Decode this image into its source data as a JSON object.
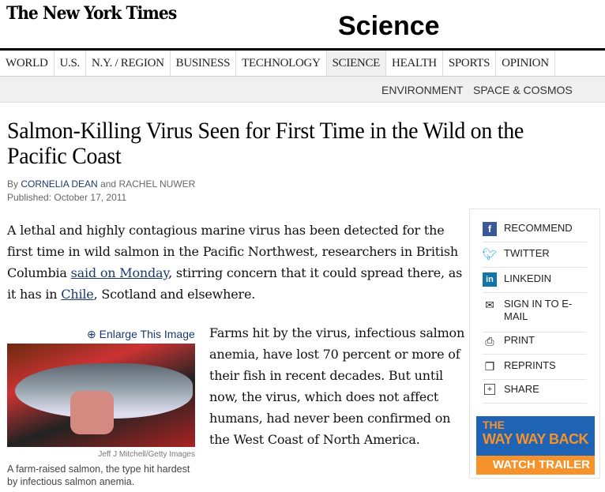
{
  "header": {
    "logo": "The New York Times",
    "section": "Science"
  },
  "nav": {
    "items": [
      "WORLD",
      "U.S.",
      "N.Y. / REGION",
      "BUSINESS",
      "TECHNOLOGY",
      "SCIENCE",
      "HEALTH",
      "SPORTS",
      "OPINION"
    ],
    "active": "SCIENCE"
  },
  "subnav": {
    "items": [
      "ENVIRONMENT",
      "SPACE & COSMOS"
    ]
  },
  "article": {
    "headline": "Salmon-Killing Virus Seen for First Time in the Wild on the Pacific Coast",
    "by": "By",
    "author1": "CORNELIA DEAN",
    "and": "and",
    "author2": "RACHEL NUWER",
    "published": "Published: October 17, 2011",
    "p1_a": "A lethal and highly contagious marine virus has been detected for the first time in wild salmon in the Pacific Northwest, researchers in British Columbia ",
    "p1_link1": "said on Monday",
    "p1_b": ", stirring concern that it could spread there, as it has in ",
    "p1_link2": "Chile",
    "p1_c": ", Scotland and elsewhere.",
    "p2": "Farms hit by the virus, infectious salmon anemia, have lost 70 percent or more of their fish in recent decades. But until now, the virus, which does not affect humans, had never been confirmed on the West Coast of North America."
  },
  "image": {
    "enlarge": "Enlarge This Image",
    "credit": "Jeff J Mitchell/Getty Images",
    "caption": "A farm-raised salmon, the type hit hardest by infectious salmon anemia."
  },
  "tools": [
    {
      "label": "RECOMMEND",
      "icon": "facebook-icon"
    },
    {
      "label": "TWITTER",
      "icon": "twitter-icon"
    },
    {
      "label": "LINKEDIN",
      "icon": "linkedin-icon"
    },
    {
      "label": "SIGN IN TO E-MAIL",
      "icon": "email-icon"
    },
    {
      "label": "PRINT",
      "icon": "print-icon"
    },
    {
      "label": "REPRINTS",
      "icon": "reprints-icon"
    },
    {
      "label": "SHARE",
      "icon": "share-icon"
    }
  ],
  "ad": {
    "line1": "THE",
    "line2": "WAY WAY BACK",
    "cta": "WATCH TRAILER"
  }
}
